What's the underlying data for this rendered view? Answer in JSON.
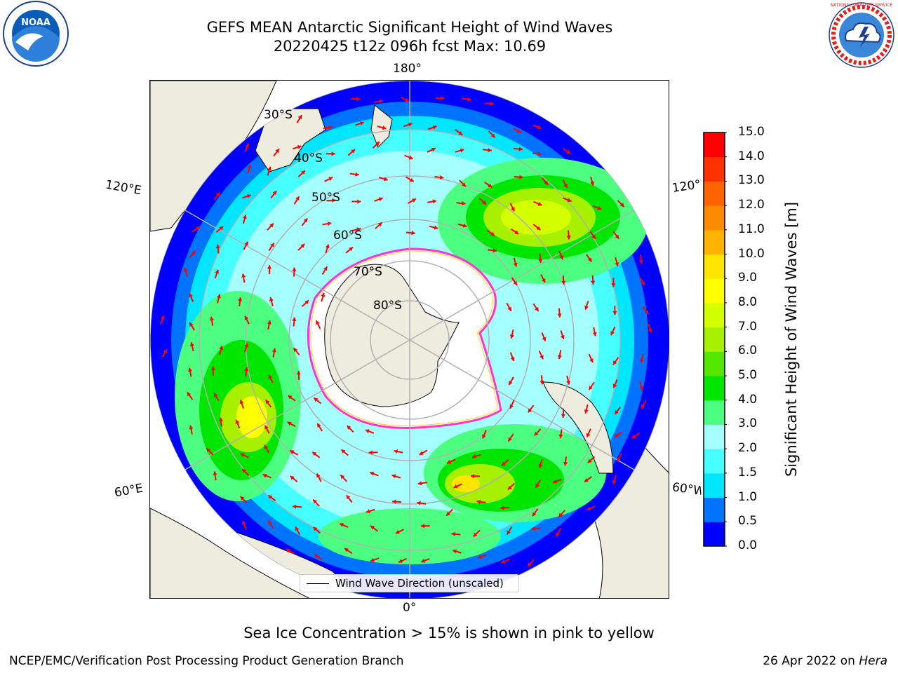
{
  "title": {
    "line1": "GEFS MEAN Antarctic Significant Height of Wind Waves",
    "line2": "20220425 t12z 096h fcst   Max: 10.69"
  },
  "map": {
    "projection": "south-polar-stereographic",
    "longitude_labels": {
      "top": "180°",
      "bottom": "0°",
      "upper_left": "120°E",
      "upper_right": "120°W",
      "lower_left": "60°E",
      "lower_right": "60°W"
    },
    "latitude_labels": [
      "30°S",
      "40°S",
      "50°S",
      "60°S",
      "70°S",
      "80°S"
    ],
    "colors": {
      "land": "#eeecde",
      "ice_edge": "#ff33cc",
      "ice_edge_inner": "#ffd21f",
      "arrow": "#ff0000",
      "gridline": "#b0b0b0"
    }
  },
  "legend": {
    "label": "Wind Wave Direction (unscaled)"
  },
  "colorbar": {
    "label": "Significant Height of Wind Waves [m]",
    "ticks": [
      "0.0",
      "0.5",
      "1.0",
      "1.5",
      "2.0",
      "3.0",
      "4.0",
      "5.0",
      "6.0",
      "7.0",
      "8.0",
      "9.0",
      "10.0",
      "11.0",
      "12.0",
      "13.0",
      "14.0",
      "15.0"
    ],
    "colors": [
      "#0000ff",
      "#0073ff",
      "#00e6ff",
      "#48ffff",
      "#a6ffff",
      "#4dff80",
      "#00e600",
      "#55e600",
      "#a6f000",
      "#d4ff00",
      "#ffff00",
      "#ffe600",
      "#ffb300",
      "#ff8c00",
      "#ff6400",
      "#ff3200",
      "#ff0000"
    ]
  },
  "subtitle": "Sea Ice Concentration > 15% is shown in pink to yellow",
  "footer": {
    "left": "NCEP/EMC/Verification Post Processing Product Generation Branch",
    "date": "26 Apr 2022 on ",
    "host": "Hera"
  },
  "logos": {
    "noaa": "NOAA",
    "nws_ring": "NATIONAL WEATHER SERVICE"
  }
}
